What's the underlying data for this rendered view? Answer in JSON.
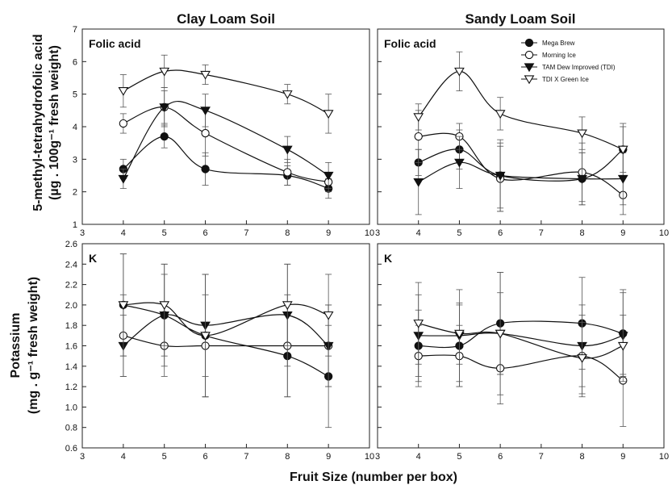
{
  "figure": {
    "column_titles": [
      "Clay Loam Soil",
      "Sandy Loam Soil"
    ],
    "xlabel": "Fruit Size (number per box)",
    "ylabel_top": [
      "5-methyl-tetrahydrofolic acid",
      "(µg . 100g⁻¹ fresh weight)"
    ],
    "ylabel_bottom": [
      "Potassium",
      "(mg . g⁻¹ fresh weight)"
    ]
  },
  "series_styles": [
    {
      "name": "Mega Brew",
      "marker": "circle",
      "fill": "#111111"
    },
    {
      "name": "Morning Ice",
      "marker": "circle",
      "fill": "#ffffff"
    },
    {
      "name": "TAM Dew Improved (TDI)",
      "marker": "triangle-down",
      "fill": "#111111"
    },
    {
      "name": "TDI X Green Ice",
      "marker": "triangle-down",
      "fill": "#ffffff"
    }
  ],
  "chart_data": [
    {
      "type": "line",
      "panel": "Folic acid",
      "soil": "Clay Loam Soil",
      "x": [
        4,
        5,
        6,
        8,
        9
      ],
      "xlim": [
        3,
        10
      ],
      "ylim": [
        1,
        7
      ],
      "xticks": [
        "3",
        "4",
        "5",
        "6",
        "7",
        "8",
        "9",
        "10"
      ],
      "yticks": [
        "1",
        "2",
        "3",
        "4",
        "5",
        "6",
        "7"
      ],
      "series": [
        {
          "name": "Mega Brew",
          "values": [
            2.7,
            3.7,
            2.7,
            2.5,
            2.1
          ],
          "err": [
            0.3,
            0.35,
            0.5,
            0.3,
            0.3
          ]
        },
        {
          "name": "Morning Ice",
          "values": [
            4.1,
            4.6,
            3.8,
            2.6,
            2.3
          ],
          "err": [
            0.3,
            0.5,
            0.7,
            0.4,
            0.3
          ]
        },
        {
          "name": "TAM Dew Improved (TDI)",
          "values": [
            2.4,
            4.6,
            4.5,
            3.3,
            2.5
          ],
          "err": [
            0.3,
            0.6,
            0.5,
            0.4,
            0.4
          ]
        },
        {
          "name": "TDI X Green Ice",
          "values": [
            5.1,
            5.7,
            5.6,
            5.0,
            4.4
          ],
          "err": [
            0.5,
            0.5,
            0.3,
            0.3,
            0.6
          ]
        }
      ]
    },
    {
      "type": "line",
      "panel": "Folic acid",
      "soil": "Sandy Loam Soil",
      "x": [
        4,
        5,
        6,
        8,
        9
      ],
      "xlim": [
        3,
        10
      ],
      "ylim": [
        1,
        7
      ],
      "xticks": [
        "3",
        "4",
        "5",
        "6",
        "7",
        "8",
        "9",
        "10"
      ],
      "yticks": [],
      "legend_position": "top-right",
      "series": [
        {
          "name": "Mega Brew",
          "values": [
            2.9,
            3.3,
            2.5,
            2.4,
            3.3
          ],
          "err": [
            0.4,
            0.6,
            1.0,
            0.8,
            0.8
          ]
        },
        {
          "name": "Morning Ice",
          "values": [
            3.7,
            3.7,
            2.4,
            2.6,
            1.9
          ],
          "err": [
            0.8,
            0.4,
            1.0,
            0.9,
            0.6
          ]
        },
        {
          "name": "TAM Dew Improved (TDI)",
          "values": [
            2.3,
            2.9,
            2.5,
            2.4,
            2.4
          ],
          "err": [
            1.0,
            0.8,
            1.1,
            0.8,
            0.8
          ]
        },
        {
          "name": "TDI X Green Ice",
          "values": [
            4.3,
            5.7,
            4.4,
            3.8,
            3.3
          ],
          "err": [
            0.4,
            0.6,
            0.5,
            0.5,
            0.7
          ]
        }
      ]
    },
    {
      "type": "line",
      "panel": "K",
      "soil": "Clay Loam Soil",
      "x": [
        4,
        5,
        6,
        8,
        9
      ],
      "xlim": [
        3,
        10
      ],
      "ylim": [
        0.6,
        2.6
      ],
      "xticks": [
        "3",
        "4",
        "5",
        "6",
        "7",
        "8",
        "9",
        "10"
      ],
      "yticks": [
        "0.6",
        "0.8",
        "1.0",
        "1.2",
        "1.4",
        "1.6",
        "1.8",
        "2.0",
        "2.2",
        "2.4",
        "2.6"
      ],
      "series": [
        {
          "name": "Mega Brew",
          "values": [
            2.0,
            1.9,
            1.7,
            1.5,
            1.3
          ],
          "err": [
            0.5,
            0.5,
            0.6,
            0.4,
            0.5
          ]
        },
        {
          "name": "Morning Ice",
          "values": [
            1.7,
            1.6,
            1.6,
            1.6,
            1.6
          ],
          "err": [
            0.4,
            0.3,
            0.5,
            0.5,
            0.4
          ]
        },
        {
          "name": "TAM Dew Improved (TDI)",
          "values": [
            1.6,
            1.9,
            1.8,
            1.9,
            1.6
          ],
          "err": [
            0.3,
            0.4,
            0.5,
            0.5,
            0.4
          ]
        },
        {
          "name": "TDI X Green Ice",
          "values": [
            2.0,
            2.0,
            1.7,
            2.0,
            1.9
          ],
          "err": [
            0.5,
            0.4,
            0.6,
            0.4,
            0.4
          ]
        }
      ]
    },
    {
      "type": "line",
      "panel": "K",
      "soil": "Sandy Loam Soil",
      "x": [
        4,
        5,
        6,
        8,
        9
      ],
      "xlim": [
        3,
        10
      ],
      "ylim": [
        0.6,
        2.6
      ],
      "xticks": [
        "3",
        "4",
        "5",
        "6",
        "7",
        "8",
        "9",
        "10"
      ],
      "yticks": [],
      "series": [
        {
          "name": "Mega Brew",
          "values": [
            1.6,
            1.6,
            1.82,
            1.82,
            1.72
          ],
          "err": [
            0.35,
            0.4,
            0.5,
            0.45,
            0.4
          ]
        },
        {
          "name": "Morning Ice",
          "values": [
            1.5,
            1.5,
            1.38,
            1.5,
            1.26
          ],
          "err": [
            0.3,
            0.3,
            0.35,
            0.4,
            0.45
          ]
        },
        {
          "name": "TAM Dew Improved (TDI)",
          "values": [
            1.7,
            1.7,
            1.72,
            1.6,
            1.7
          ],
          "err": [
            0.4,
            0.45,
            0.6,
            0.4,
            0.45
          ]
        },
        {
          "name": "TDI X Green Ice",
          "values": [
            1.82,
            1.72,
            1.72,
            1.48,
            1.6
          ],
          "err": [
            0.4,
            0.3,
            0.4,
            0.35,
            0.3
          ]
        }
      ]
    }
  ]
}
